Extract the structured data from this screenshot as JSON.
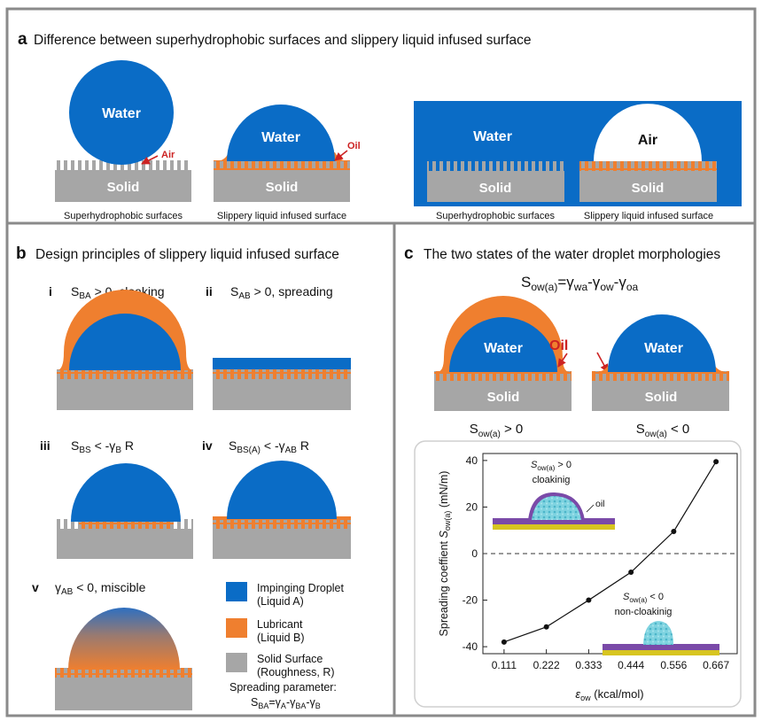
{
  "colors": {
    "water": "#0a6cc6",
    "oil": "#ef7f2f",
    "solid": "#a6a6a6",
    "frame": "#8a8a8a",
    "arrow": "#cc2222"
  },
  "panel_a": {
    "letter": "a",
    "title": "Difference between superhydrophobic surfaces and slippery liquid infused surface",
    "water": "Water",
    "air": "Air",
    "oil": "Oil",
    "solid": "Solid",
    "cap_superhydrophobic": "Superhydrophobic surfaces",
    "cap_slippery": "Slippery liquid infused surface"
  },
  "panel_b": {
    "letter": "b",
    "title": "Design principles of slippery liquid infused surface",
    "i": {
      "num": "i",
      "S": "S",
      "sub": "BA",
      "rest": " > 0, cloaking"
    },
    "ii": {
      "num": "ii",
      "S": "S",
      "sub": "AB",
      "rest": " > 0, spreading"
    },
    "iii": {
      "num": "iii",
      "S": "S",
      "sub": "BS",
      "mid": " < -γ",
      "sub2": "B",
      "rest": " R"
    },
    "iv": {
      "num": "iv",
      "S": "S",
      "sub": "BS(A)",
      "mid": " < -γ",
      "sub2": "AB",
      "rest": " R"
    },
    "v": {
      "num": "v",
      "g": "γ",
      "sub": "AB",
      "rest": " < 0, miscible"
    },
    "legend": {
      "droplet_1": "Impinging Droplet",
      "droplet_2": "(Liquid A)",
      "lubricant_1": "Lubricant",
      "lubricant_2": "(Liquid B)",
      "solid_1": "Solid Surface",
      "solid_2": "(Roughness, R)",
      "param_label": "Spreading parameter:",
      "eq": {
        "S": "S",
        "sBA": "BA",
        "eq": "=γ",
        "sA": "A",
        "m1": "-γ",
        "sBA2": "BA",
        "m2": "-γ",
        "sB": "B"
      }
    }
  },
  "panel_c": {
    "letter": "c",
    "title": "The two states of the water droplet morphologies",
    "eq": {
      "S": "S",
      "sub": "ow(a)",
      "eq": "=γ",
      "wa": "wa",
      "m1": "-γ",
      "ow": "ow",
      "m2": "-γ",
      "oa": "oa"
    },
    "water": "Water",
    "oil": "Oil",
    "solid": "Solid",
    "state_pos": {
      "S": "S",
      "sub": "ow(a)",
      "rest": " > 0"
    },
    "state_neg": {
      "S": "S",
      "sub": "ow(a)",
      "rest": " < 0"
    },
    "inset_pos": {
      "S": "S",
      "sub": "ow(a)",
      "rest": " > 0",
      "label": "cloakinig",
      "oil": "oil"
    },
    "inset_neg": {
      "S": "S",
      "sub": "ow(a)",
      "rest": " < 0",
      "label": "non-cloakinig"
    }
  },
  "chart_data": {
    "type": "line",
    "x": [
      0.111,
      0.222,
      0.333,
      0.444,
      0.556,
      0.667
    ],
    "series": [
      {
        "values": [
          -38,
          -31.5,
          -20,
          -8,
          9.5,
          39.5
        ]
      }
    ],
    "xticks": [
      "0.111",
      "0.222",
      "0.333",
      "0.444",
      "0.556",
      "0.667"
    ],
    "yticks": [
      "-40",
      "-20",
      "0",
      "20",
      "40"
    ],
    "ylim": [
      -43,
      43
    ],
    "xlabel": {
      "main": "ε",
      "sub": "ow",
      "rest": " (kcal/mol)"
    },
    "ylabel": {
      "main": "Spreading coeffient ",
      "S": "S",
      "sub": "ow(a)",
      "rest": " (mN/m)"
    },
    "zero_line": "dashed",
    "grid": false
  }
}
